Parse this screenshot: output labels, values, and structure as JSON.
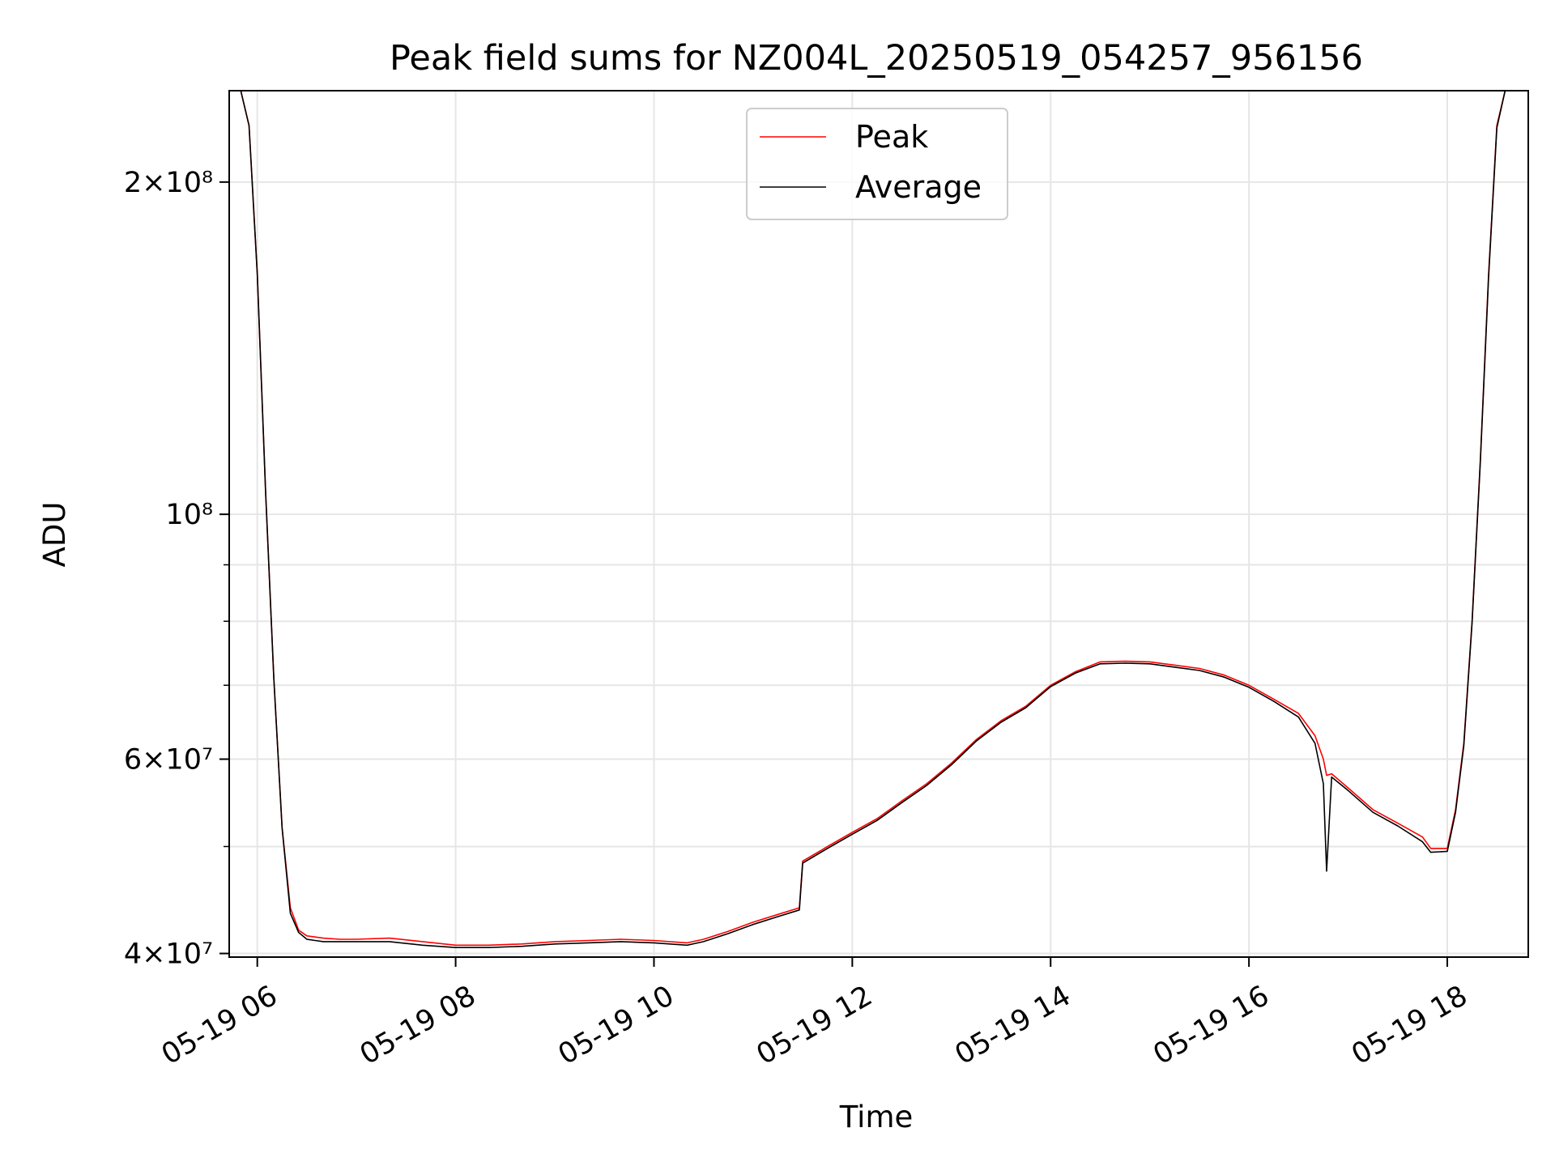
{
  "chart_data": {
    "type": "line",
    "title": "Peak field sums for NZ004L_20250519_054257_956156",
    "xlabel": "Time",
    "ylabel": "ADU",
    "yscale": "log",
    "xlim": [
      "05-19 05:43",
      "05-19 18:49"
    ],
    "ylim": [
      39700000,
      242000000
    ],
    "grid": true,
    "legend": {
      "placement": "top-center",
      "entries": [
        "Peak",
        "Average"
      ]
    },
    "x_ticks": [
      "05-19 06",
      "05-19 08",
      "05-19 10",
      "05-19 12",
      "05-19 14",
      "05-19 16",
      "05-19 18"
    ],
    "y_ticks": [
      {
        "value": 40000000,
        "label": "4×10⁷"
      },
      {
        "value": 60000000,
        "label": "6×10⁷"
      },
      {
        "value": 100000000,
        "label": "10⁸"
      },
      {
        "value": 200000000,
        "label": "2×10⁸"
      }
    ],
    "y_minor_ticks": [
      50000000,
      70000000,
      80000000,
      90000000
    ],
    "x_format": "MM-DD HH:MM",
    "series": [
      {
        "name": "Peak",
        "color": "#ff0000",
        "x": [
          "05-19 05:45",
          "05-19 05:50",
          "05-19 05:55",
          "05-19 06:00",
          "05-19 06:05",
          "05-19 06:10",
          "05-19 06:15",
          "05-19 06:20",
          "05-19 06:25",
          "05-19 06:30",
          "05-19 06:35",
          "05-19 06:40",
          "05-19 06:50",
          "05-19 07:00",
          "05-19 07:20",
          "05-19 07:40",
          "05-19 08:00",
          "05-19 08:20",
          "05-19 08:40",
          "05-19 09:00",
          "05-19 09:20",
          "05-19 09:40",
          "05-19 10:00",
          "05-19 10:20",
          "05-19 10:30",
          "05-19 10:45",
          "05-19 11:00",
          "05-19 11:15",
          "05-19 11:28",
          "05-19 11:30",
          "05-19 11:45",
          "05-19 12:00",
          "05-19 12:15",
          "05-19 12:30",
          "05-19 12:45",
          "05-19 13:00",
          "05-19 13:15",
          "05-19 13:30",
          "05-19 13:45",
          "05-19 14:00",
          "05-19 14:15",
          "05-19 14:30",
          "05-19 14:45",
          "05-19 15:00",
          "05-19 15:15",
          "05-19 15:30",
          "05-19 15:45",
          "05-19 16:00",
          "05-19 16:15",
          "05-19 16:30",
          "05-19 16:40",
          "05-19 16:45",
          "05-19 16:47",
          "05-19 16:50",
          "05-19 17:00",
          "05-19 17:15",
          "05-19 17:30",
          "05-19 17:45",
          "05-19 17:50",
          "05-19 18:00",
          "05-19 18:05",
          "05-19 18:10",
          "05-19 18:15",
          "05-19 18:20",
          "05-19 18:25",
          "05-19 18:30",
          "05-19 18:35"
        ],
        "y": [
          242000000,
          242000000,
          225000000,
          165000000,
          105000000,
          71000000,
          52000000,
          44000000,
          42000000,
          41500000,
          41400000,
          41300000,
          41200000,
          41200000,
          41300000,
          41000000,
          40700000,
          40700000,
          40800000,
          41000000,
          41100000,
          41200000,
          41100000,
          40900000,
          41200000,
          41900000,
          42700000,
          43400000,
          44000000,
          48500000,
          50000000,
          51500000,
          53000000,
          55000000,
          57000000,
          59500000,
          62500000,
          65000000,
          67000000,
          70000000,
          72000000,
          73500000,
          73600000,
          73500000,
          73000000,
          72500000,
          71500000,
          70000000,
          68000000,
          66000000,
          63000000,
          60000000,
          58000000,
          58200000,
          56500000,
          54000000,
          52500000,
          51000000,
          49800000,
          49800000,
          54000000,
          62000000,
          80000000,
          112000000,
          165000000,
          225000000,
          242000000
        ]
      },
      {
        "name": "Average",
        "color": "#000000",
        "x": [
          "05-19 05:45",
          "05-19 05:50",
          "05-19 05:55",
          "05-19 06:00",
          "05-19 06:05",
          "05-19 06:10",
          "05-19 06:15",
          "05-19 06:20",
          "05-19 06:25",
          "05-19 06:30",
          "05-19 06:35",
          "05-19 06:40",
          "05-19 06:50",
          "05-19 07:00",
          "05-19 07:20",
          "05-19 07:40",
          "05-19 08:00",
          "05-19 08:20",
          "05-19 08:40",
          "05-19 09:00",
          "05-19 09:20",
          "05-19 09:40",
          "05-19 10:00",
          "05-19 10:20",
          "05-19 10:30",
          "05-19 10:45",
          "05-19 11:00",
          "05-19 11:15",
          "05-19 11:28",
          "05-19 11:30",
          "05-19 11:45",
          "05-19 12:00",
          "05-19 12:15",
          "05-19 12:30",
          "05-19 12:45",
          "05-19 13:00",
          "05-19 13:15",
          "05-19 13:30",
          "05-19 13:45",
          "05-19 14:00",
          "05-19 14:15",
          "05-19 14:30",
          "05-19 14:45",
          "05-19 15:00",
          "05-19 15:15",
          "05-19 15:30",
          "05-19 15:45",
          "05-19 16:00",
          "05-19 16:15",
          "05-19 16:30",
          "05-19 16:40",
          "05-19 16:45",
          "05-19 16:47",
          "05-19 16:50",
          "05-19 17:00",
          "05-19 17:15",
          "05-19 17:30",
          "05-19 17:45",
          "05-19 17:50",
          "05-19 18:00",
          "05-19 18:05",
          "05-19 18:10",
          "05-19 18:15",
          "05-19 18:20",
          "05-19 18:25",
          "05-19 18:30",
          "05-19 18:35"
        ],
        "y": [
          242000000,
          242000000,
          225000000,
          165000000,
          105000000,
          71000000,
          52000000,
          43500000,
          41800000,
          41200000,
          41100000,
          41000000,
          41000000,
          41000000,
          41000000,
          40700000,
          40500000,
          40500000,
          40600000,
          40800000,
          40900000,
          41000000,
          40900000,
          40700000,
          41000000,
          41700000,
          42500000,
          43200000,
          43800000,
          48300000,
          49800000,
          51300000,
          52800000,
          54800000,
          56800000,
          59300000,
          62300000,
          64800000,
          66800000,
          69800000,
          71800000,
          73200000,
          73300000,
          73200000,
          72700000,
          72200000,
          71200000,
          69700000,
          67700000,
          65500000,
          62000000,
          57000000,
          47500000,
          57800000,
          56200000,
          53700000,
          52200000,
          50500000,
          49400000,
          49500000,
          53700000,
          61700000,
          79700000,
          111500000,
          164000000,
          224000000,
          242000000
        ]
      }
    ]
  }
}
